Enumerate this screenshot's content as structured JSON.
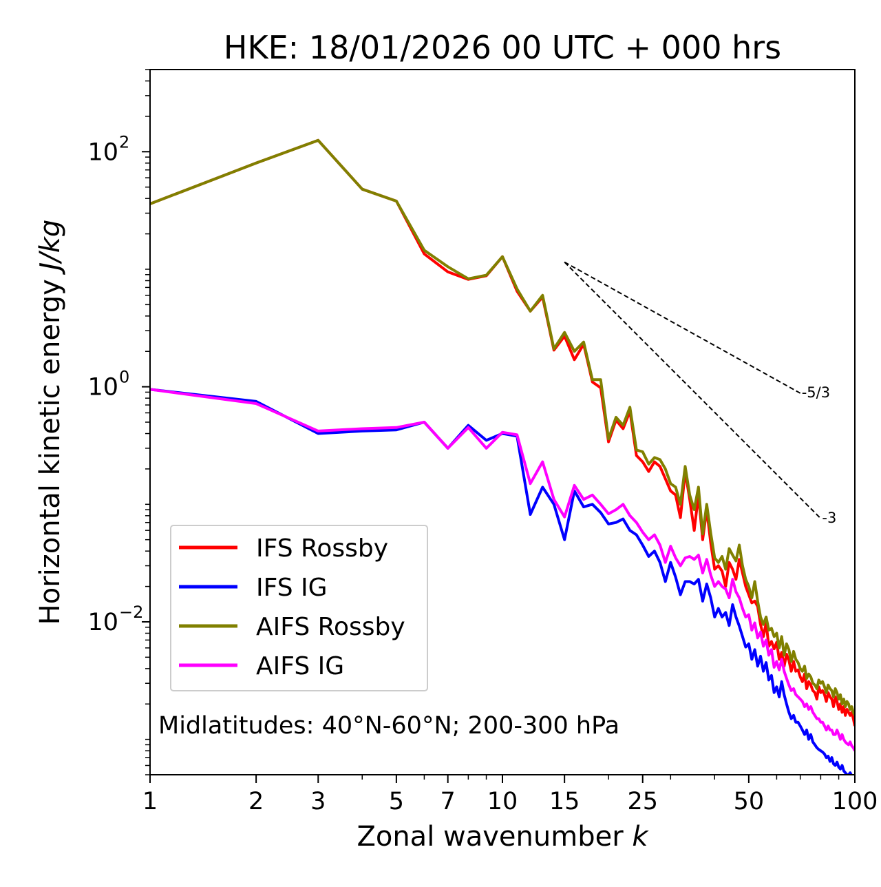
{
  "chart_data": {
    "type": "line",
    "title": "HKE: 18/01/2026 00 UTC + 000 hrs",
    "xlabel": "Zonal wavenumber",
    "xlabel_var": "k",
    "ylabel": "Horizontal kinetic energy",
    "ylabel_units": "J/kg",
    "xscale": "log",
    "yscale": "log",
    "xlim": [
      1,
      100
    ],
    "ylim": [
      0.0005,
      500
    ],
    "x_ticks": [
      1,
      2,
      3,
      5,
      7,
      10,
      15,
      25,
      50,
      100
    ],
    "x_tick_labels": [
      "1",
      "2",
      "3",
      "5",
      "7",
      "10",
      "15",
      "25",
      "50",
      "100"
    ],
    "y_ticks": [
      0.01,
      1,
      100
    ],
    "y_tick_labels": [
      {
        "base": "10",
        "exp": "−2"
      },
      {
        "base": "10",
        "exp": "0"
      },
      {
        "base": "10",
        "exp": "2"
      }
    ],
    "annotation": "Midlatitudes: 40°N-60°N; 200-300 hPa",
    "legend_position": "lower-left",
    "reference_lines": [
      {
        "label": "-5/3",
        "slope": -1.6667,
        "x": [
          15,
          70
        ],
        "y_start": 11.5
      },
      {
        "label": "-3",
        "slope": -3,
        "x": [
          15,
          80
        ],
        "y_start": 11.5
      }
    ],
    "series": [
      {
        "name": "IFS Rossby",
        "color": "#ff0000",
        "values": [
          36,
          80,
          125,
          48,
          38,
          13.5,
          9.5,
          8.2,
          8.8,
          12.8,
          6.5,
          4.4,
          5.8,
          2.05,
          2.7,
          1.7,
          2.3,
          1.1,
          0.98,
          0.34,
          0.52,
          0.44,
          0.62,
          0.26,
          0.23,
          0.19,
          0.23,
          0.21,
          0.165,
          0.13,
          0.12,
          0.077,
          0.19,
          0.11,
          0.06,
          0.12,
          0.05,
          0.09,
          0.047,
          0.028,
          0.03,
          0.027,
          0.02,
          0.032,
          0.028,
          0.023,
          0.034,
          0.026,
          0.02,
          0.017,
          0.0145,
          0.015,
          0.0135,
          0.0095,
          0.0075,
          0.0098,
          0.0062,
          0.0068,
          0.0059,
          0.0067,
          0.0048,
          0.0055,
          0.0042,
          0.0053,
          0.0047,
          0.0038,
          0.0046,
          0.0038,
          0.0039,
          0.0034,
          0.0031,
          0.0036,
          0.0027,
          0.0031,
          0.0029,
          0.0026,
          0.0025,
          0.0022,
          0.0028,
          0.0025,
          0.0026,
          0.0024,
          0.0021,
          0.0025,
          0.0023,
          0.0022,
          0.0019,
          0.0023,
          0.0021,
          0.0018,
          0.002,
          0.0017,
          0.0019,
          0.0016,
          0.0018,
          0.0017,
          0.0016,
          0.0017,
          0.0015,
          0.0013
        ]
      },
      {
        "name": "IFS IG",
        "color": "#0000ff",
        "values": [
          0.95,
          0.75,
          0.4,
          0.42,
          0.43,
          0.5,
          0.3,
          0.47,
          0.35,
          0.4,
          0.38,
          0.082,
          0.14,
          0.1,
          0.05,
          0.13,
          0.095,
          0.1,
          0.085,
          0.068,
          0.07,
          0.075,
          0.06,
          0.055,
          0.045,
          0.036,
          0.04,
          0.032,
          0.022,
          0.032,
          0.024,
          0.017,
          0.022,
          0.022,
          0.021,
          0.023,
          0.015,
          0.021,
          0.016,
          0.011,
          0.013,
          0.011,
          0.012,
          0.0093,
          0.014,
          0.011,
          0.0092,
          0.0075,
          0.0061,
          0.0065,
          0.0048,
          0.0058,
          0.0042,
          0.0051,
          0.0038,
          0.0045,
          0.0032,
          0.0035,
          0.0025,
          0.0028,
          0.0023,
          0.0031,
          0.0024,
          0.002,
          0.0017,
          0.0015,
          0.0016,
          0.0014,
          0.0014,
          0.0013,
          0.0012,
          0.0011,
          0.0012,
          0.001,
          0.0011,
          0.00095,
          0.0009,
          0.00085,
          0.00082,
          0.0008,
          0.00078,
          0.00075,
          0.0007,
          0.00072,
          0.00065,
          0.0007,
          0.00062,
          0.0006,
          0.00064,
          0.00058,
          0.00056,
          0.0006,
          0.00054,
          0.00052,
          0.0005,
          0.0005,
          0.00052,
          0.00049,
          0.00048,
          0.00045
        ]
      },
      {
        "name": "AIFS Rossby",
        "color": "#808000",
        "values": [
          36,
          80,
          125,
          48,
          38,
          14.5,
          10.5,
          8.3,
          8.9,
          12.8,
          6.8,
          4.4,
          6.0,
          2.1,
          2.9,
          2.0,
          2.4,
          1.15,
          1.15,
          0.36,
          0.55,
          0.47,
          0.67,
          0.29,
          0.28,
          0.22,
          0.25,
          0.24,
          0.2,
          0.15,
          0.14,
          0.1,
          0.21,
          0.12,
          0.09,
          0.14,
          0.056,
          0.1,
          0.057,
          0.035,
          0.032,
          0.036,
          0.028,
          0.042,
          0.037,
          0.033,
          0.045,
          0.03,
          0.023,
          0.02,
          0.016,
          0.022,
          0.015,
          0.011,
          0.0095,
          0.011,
          0.0085,
          0.0088,
          0.0075,
          0.008,
          0.006,
          0.0075,
          0.0052,
          0.0065,
          0.0058,
          0.0046,
          0.0056,
          0.0048,
          0.0045,
          0.004,
          0.0038,
          0.0042,
          0.0033,
          0.0036,
          0.0034,
          0.003,
          0.0029,
          0.0027,
          0.0032,
          0.003,
          0.0031,
          0.0028,
          0.0025,
          0.0029,
          0.0027,
          0.0026,
          0.0023,
          0.0027,
          0.0025,
          0.0022,
          0.0024,
          0.002,
          0.0022,
          0.0019,
          0.0021,
          0.002,
          0.0018,
          0.0019,
          0.0017,
          0.0016
        ]
      },
      {
        "name": "AIFS IG",
        "color": "#ff00ff",
        "values": [
          0.95,
          0.72,
          0.42,
          0.44,
          0.45,
          0.5,
          0.3,
          0.45,
          0.3,
          0.41,
          0.39,
          0.15,
          0.23,
          0.11,
          0.078,
          0.145,
          0.11,
          0.12,
          0.1,
          0.083,
          0.09,
          0.1,
          0.08,
          0.07,
          0.058,
          0.05,
          0.055,
          0.045,
          0.032,
          0.044,
          0.035,
          0.03,
          0.035,
          0.036,
          0.034,
          0.037,
          0.026,
          0.034,
          0.025,
          0.02,
          0.022,
          0.02,
          0.019,
          0.016,
          0.023,
          0.018,
          0.016,
          0.013,
          0.011,
          0.0115,
          0.0085,
          0.0098,
          0.0073,
          0.0082,
          0.0062,
          0.007,
          0.0052,
          0.0058,
          0.0041,
          0.0046,
          0.0039,
          0.0048,
          0.0038,
          0.0033,
          0.0029,
          0.0026,
          0.0027,
          0.0024,
          0.0023,
          0.0022,
          0.0021,
          0.0019,
          0.002,
          0.0018,
          0.0019,
          0.0017,
          0.0016,
          0.0015,
          0.0015,
          0.0014,
          0.0014,
          0.0013,
          0.0012,
          0.0013,
          0.0012,
          0.0012,
          0.0011,
          0.0011,
          0.0012,
          0.0011,
          0.001,
          0.0011,
          0.001,
          0.00095,
          0.00092,
          0.0009,
          0.00095,
          0.00088,
          0.00085,
          0.0008
        ]
      }
    ]
  }
}
